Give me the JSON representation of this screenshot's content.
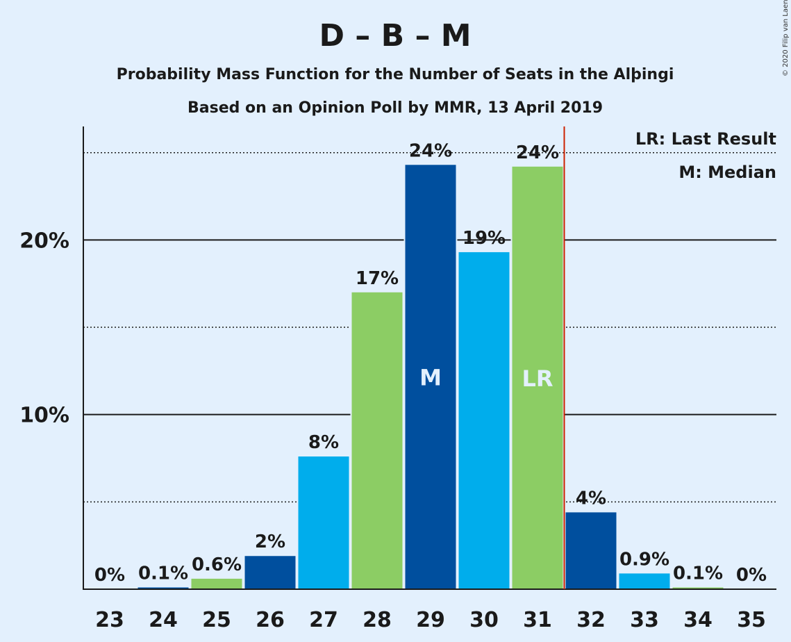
{
  "header": {
    "title": "D – B – M",
    "subtitle1": "Probability Mass Function for the Number of Seats in the Alþingi",
    "subtitle2": "Based on an Opinion Poll by MMR, 13 April 2019"
  },
  "legend": {
    "last_result": "LR: Last Result",
    "median": "M: Median"
  },
  "copyright": "© 2020 Filip van Laenen",
  "colors": {
    "background": "#e3f0fd",
    "dark_blue": "#004f9e",
    "light_blue": "#00adec",
    "green": "#8ccd64",
    "last_result_line": "#cc2200",
    "text": "#1a1a1a"
  },
  "chart_data": {
    "type": "bar",
    "title": "D – B – M",
    "categories": [
      "23",
      "24",
      "25",
      "26",
      "27",
      "28",
      "29",
      "30",
      "31",
      "32",
      "33",
      "34",
      "35"
    ],
    "values": [
      0,
      0.1,
      0.6,
      1.9,
      7.6,
      17.0,
      24.3,
      19.3,
      24.2,
      4.4,
      0.9,
      0.1,
      0
    ],
    "data_labels": [
      "0%",
      "0.1%",
      "0.6%",
      "2%",
      "8%",
      "17%",
      "24%",
      "19%",
      "24%",
      "4%",
      "0.9%",
      "0.1%",
      "0%"
    ],
    "bar_colors": [
      "green",
      "dark_blue",
      "green",
      "dark_blue",
      "light_blue",
      "green",
      "dark_blue",
      "light_blue",
      "green",
      "dark_blue",
      "light_blue",
      "green",
      "dark_blue"
    ],
    "ylim": [
      0,
      26.5
    ],
    "yticks": [
      {
        "value": 10,
        "label": "10%"
      },
      {
        "value": 20,
        "label": "20%"
      }
    ],
    "minor_gridlines": [
      5,
      15,
      25
    ],
    "median_seat": "29",
    "median_marker": "M",
    "last_result_seat": "31",
    "last_result_marker": "LR",
    "legend_position": "top-right"
  }
}
